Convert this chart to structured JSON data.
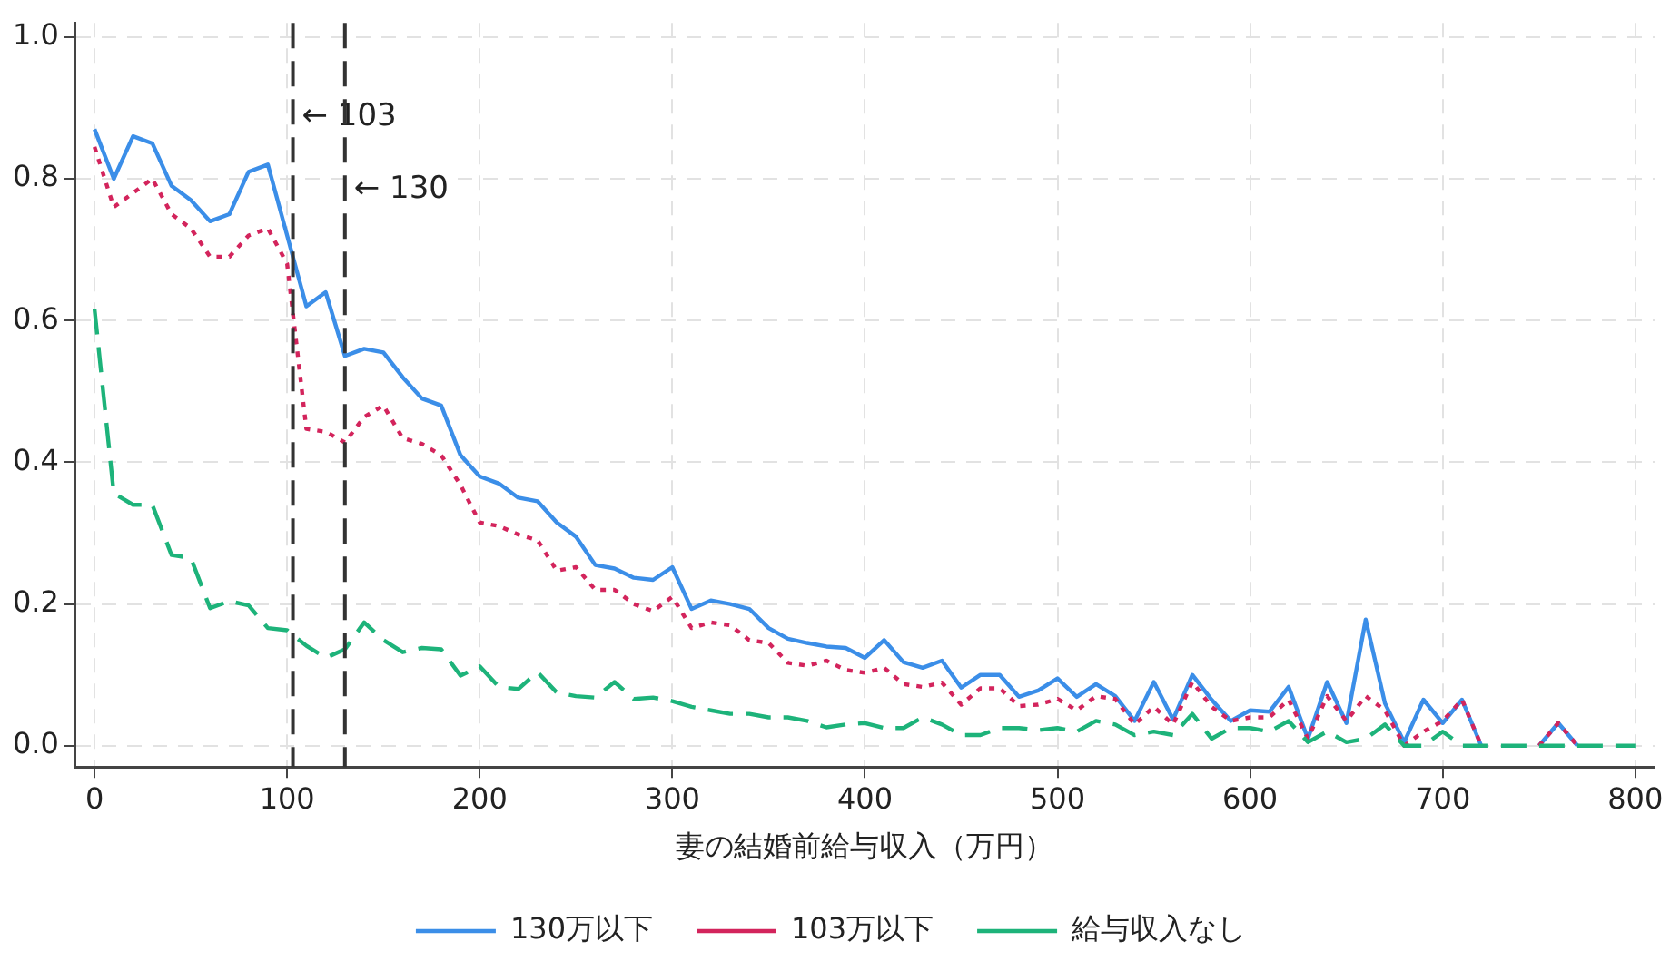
{
  "chart_data": {
    "type": "line",
    "xlabel": "妻の結婚前給与収入（万円）",
    "x": [
      0,
      10,
      20,
      30,
      40,
      50,
      60,
      70,
      80,
      90,
      100,
      110,
      120,
      130,
      140,
      150,
      160,
      170,
      180,
      190,
      200,
      210,
      220,
      230,
      240,
      250,
      260,
      270,
      280,
      290,
      300,
      310,
      320,
      330,
      340,
      350,
      360,
      370,
      380,
      390,
      400,
      410,
      420,
      430,
      440,
      450,
      460,
      470,
      480,
      490,
      500,
      510,
      520,
      530,
      540,
      550,
      560,
      570,
      580,
      590,
      600,
      610,
      620,
      630,
      640,
      650,
      660,
      670,
      680,
      690,
      700,
      710,
      720,
      730,
      740,
      750,
      760,
      770,
      780,
      790,
      800
    ],
    "series": [
      {
        "name": "130万以下",
        "color": "#3b8ee8",
        "line_style": "solid",
        "values": [
          0.87,
          0.8,
          0.86,
          0.85,
          0.79,
          0.77,
          0.74,
          0.75,
          0.81,
          0.82,
          0.72,
          0.62,
          0.64,
          0.55,
          0.56,
          0.555,
          0.52,
          0.49,
          0.48,
          0.41,
          0.38,
          0.37,
          0.35,
          0.345,
          0.315,
          0.295,
          0.255,
          0.25,
          0.237,
          0.234,
          0.252,
          0.193,
          0.205,
          0.2,
          0.193,
          0.166,
          0.151,
          0.145,
          0.14,
          0.138,
          0.124,
          0.149,
          0.118,
          0.11,
          0.12,
          0.082,
          0.1,
          0.1,
          0.069,
          0.078,
          0.095,
          0.069,
          0.087,
          0.07,
          0.035,
          0.09,
          0.037,
          0.1,
          0.065,
          0.035,
          0.05,
          0.048,
          0.083,
          0.01,
          0.09,
          0.032,
          0.178,
          0.06,
          0.005,
          0.065,
          0.032,
          0.065,
          0,
          null,
          null,
          0,
          0.032,
          0,
          null,
          null,
          null
        ]
      },
      {
        "name": "103万以下",
        "color": "#d3245c",
        "line_style": "dotted",
        "values": [
          0.845,
          0.76,
          0.78,
          0.8,
          0.75,
          0.73,
          0.69,
          0.69,
          0.72,
          0.73,
          0.68,
          0.447,
          0.443,
          0.428,
          0.464,
          0.48,
          0.434,
          0.426,
          0.41,
          0.368,
          0.315,
          0.31,
          0.298,
          0.29,
          0.247,
          0.252,
          0.22,
          0.22,
          0.2,
          0.19,
          0.21,
          0.166,
          0.174,
          0.17,
          0.149,
          0.145,
          0.117,
          0.113,
          0.12,
          0.107,
          0.103,
          0.11,
          0.087,
          0.083,
          0.089,
          0.058,
          0.081,
          0.081,
          0.056,
          0.058,
          0.066,
          0.05,
          0.07,
          0.066,
          0.03,
          0.055,
          0.03,
          0.09,
          0.055,
          0.035,
          0.04,
          0.04,
          0.065,
          0.01,
          0.07,
          0.035,
          0.07,
          0.05,
          0,
          0.02,
          0.035,
          0.065,
          0,
          null,
          null,
          0,
          0.032,
          0,
          null,
          null,
          null
        ]
      },
      {
        "name": "給与収入なし",
        "color": "#1db37a",
        "line_style": "dashed",
        "values": [
          0.616,
          0.356,
          0.34,
          0.34,
          0.269,
          0.265,
          0.194,
          0.204,
          0.198,
          0.166,
          0.163,
          0.141,
          0.124,
          0.136,
          0.174,
          0.149,
          0.132,
          0.138,
          0.136,
          0.099,
          0.112,
          0.083,
          0.08,
          0.104,
          0.075,
          0.07,
          0.068,
          0.09,
          0.066,
          0.068,
          0.063,
          0.055,
          0.05,
          0.045,
          0.045,
          0.04,
          0.04,
          0.035,
          0.026,
          0.03,
          0.032,
          0.025,
          0.025,
          0.04,
          0.03,
          0.015,
          0.015,
          0.025,
          0.025,
          0.022,
          0.025,
          0.02,
          0.035,
          0.03,
          0.015,
          0.02,
          0.015,
          0.045,
          0.01,
          0.025,
          0.025,
          0.02,
          0.035,
          0.005,
          0.02,
          0.005,
          0.01,
          0.03,
          0,
          0,
          0.02,
          0,
          0,
          0,
          0,
          0,
          0,
          0,
          0,
          0,
          0
        ]
      }
    ],
    "xlim": [
      -10,
      810
    ],
    "xticks": [
      0,
      100,
      200,
      300,
      400,
      500,
      600,
      700,
      800
    ],
    "ylim": [
      -0.03,
      1.02
    ],
    "yticks": [
      {
        "value": 0,
        "label": "0.0"
      },
      {
        "value": 0.2,
        "label": "0.2"
      },
      {
        "value": 0.4,
        "label": "0.4"
      },
      {
        "value": 0.6,
        "label": "0.6"
      },
      {
        "value": 0.8,
        "label": "0.8"
      },
      {
        "value": 1,
        "label": "1.0"
      }
    ],
    "ref_lines": [
      {
        "axis": "x",
        "value": 103,
        "label": "← 103",
        "color": "#333333",
        "line_style": "dashed"
      },
      {
        "axis": "x",
        "value": 130,
        "label": "← 130",
        "color": "#333333",
        "line_style": "dashed"
      }
    ],
    "grid": true,
    "legend": "bottom",
    "marker": "none"
  }
}
